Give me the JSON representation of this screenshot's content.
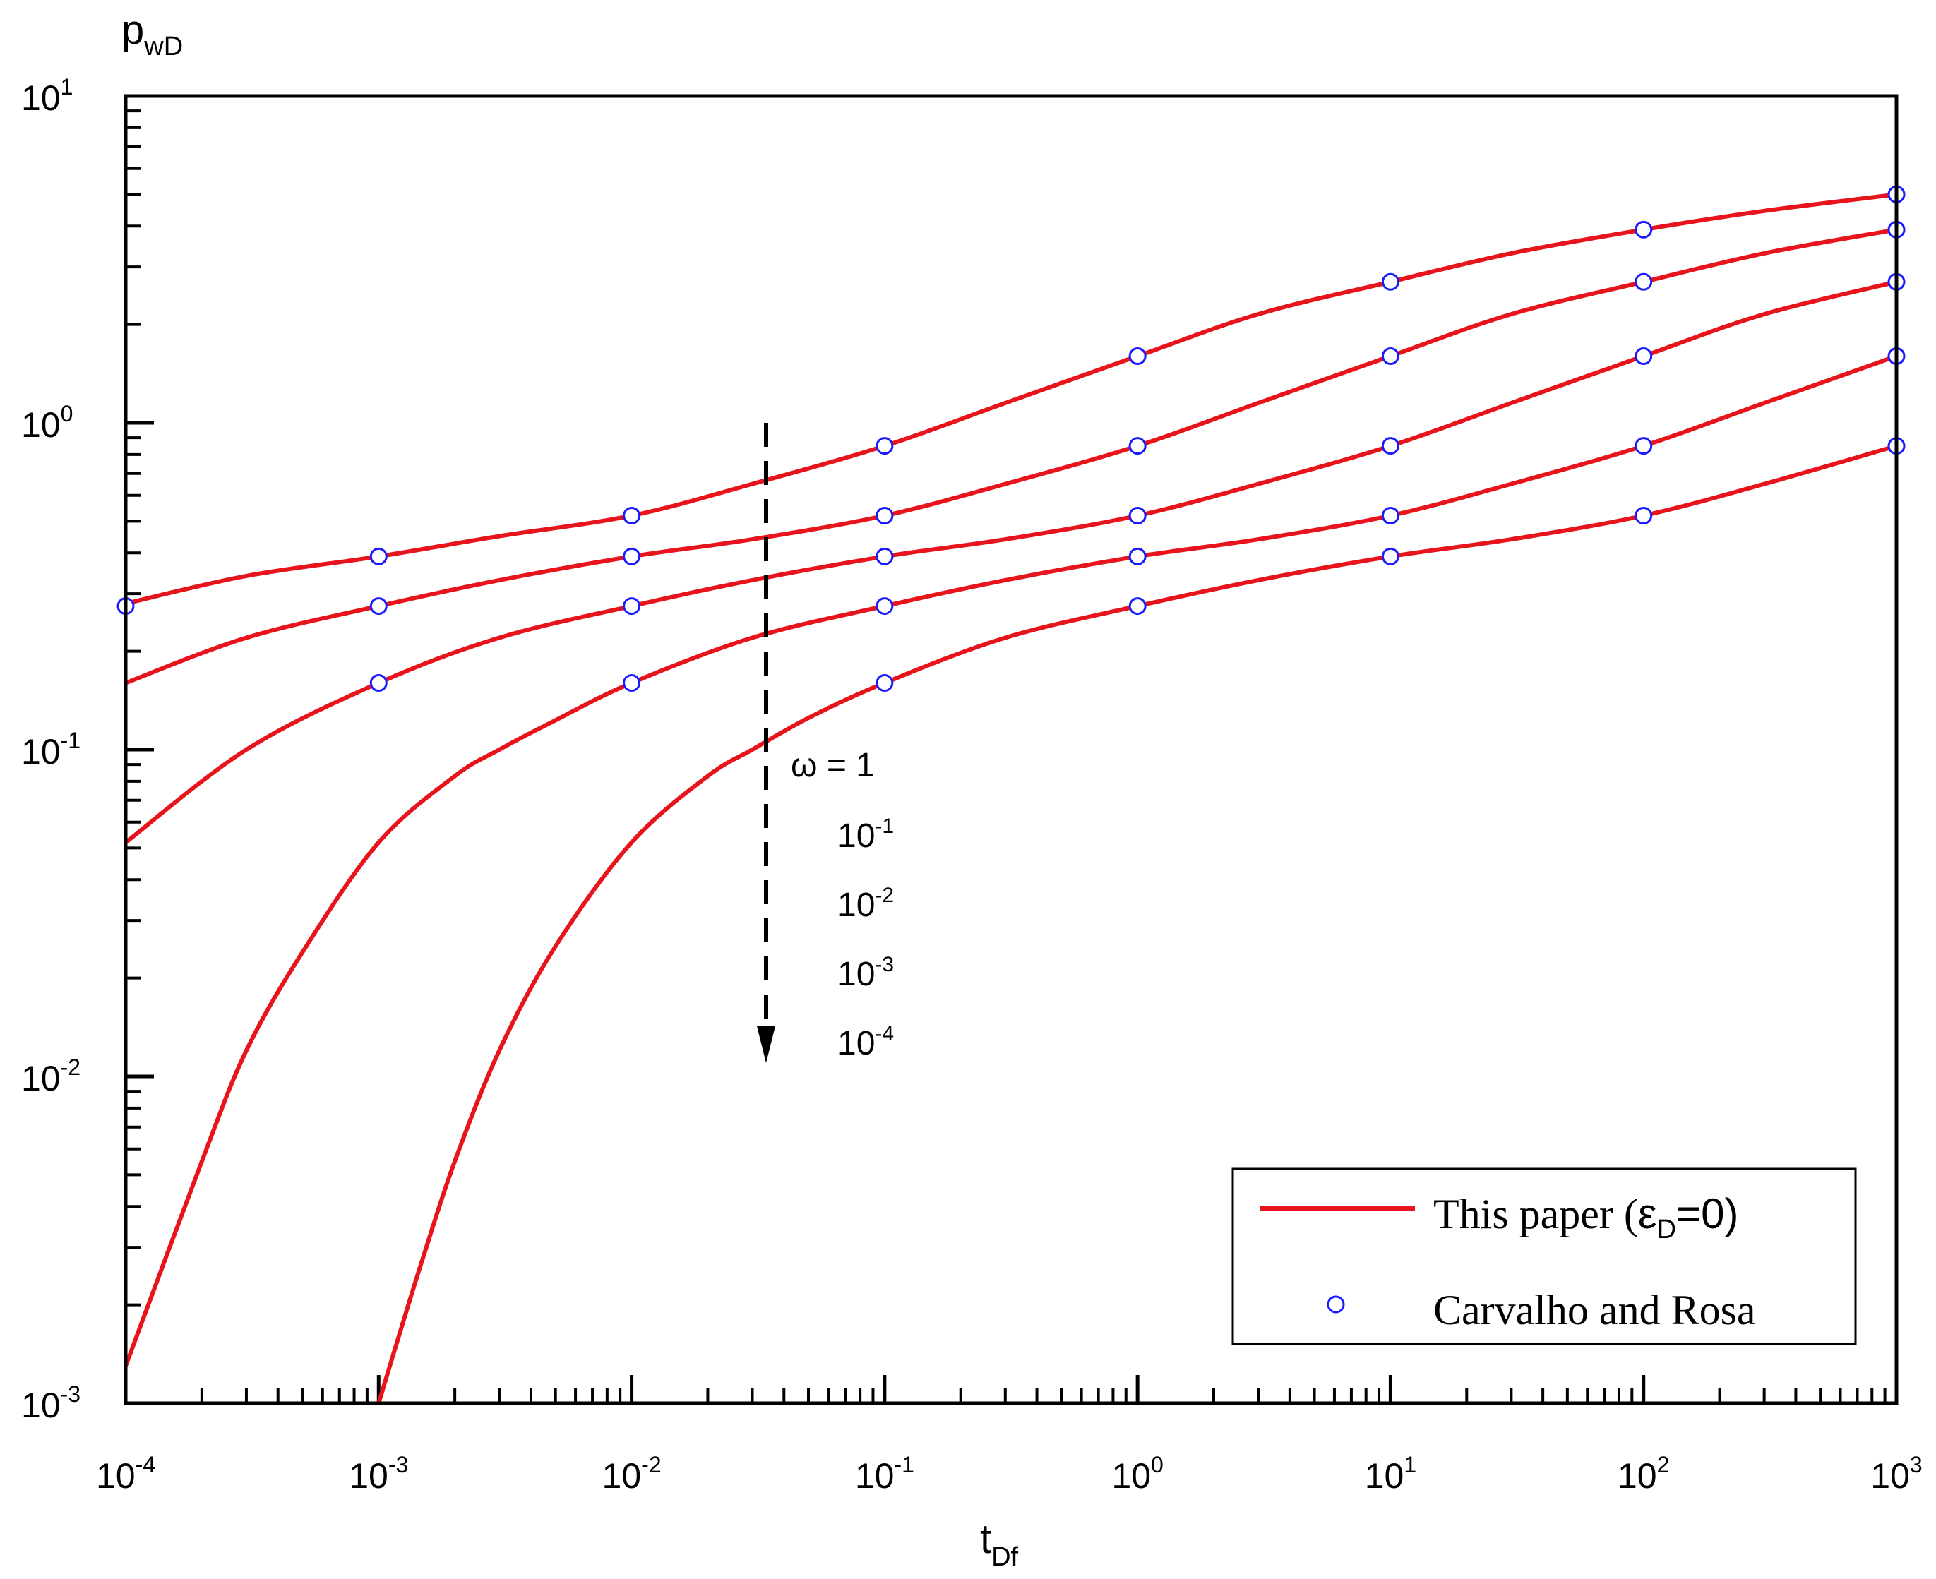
{
  "chart_data": {
    "type": "line",
    "scale": "log-log",
    "xlabel": {
      "main": "t",
      "sub": "Df"
    },
    "ylabel": {
      "main": "p",
      "sub": "wD"
    },
    "xlim": [
      0.0001,
      1000
    ],
    "ylim": [
      0.001,
      10
    ],
    "x_ticks": [
      {
        "base": "10",
        "exp": "-4"
      },
      {
        "base": "10",
        "exp": "-3"
      },
      {
        "base": "10",
        "exp": "-2"
      },
      {
        "base": "10",
        "exp": "-1"
      },
      {
        "base": "10",
        "exp": "0"
      },
      {
        "base": "10",
        "exp": "1"
      },
      {
        "base": "10",
        "exp": "2"
      },
      {
        "base": "10",
        "exp": "3"
      }
    ],
    "y_ticks": [
      {
        "base": "10",
        "exp": "-3"
      },
      {
        "base": "10",
        "exp": "-2"
      },
      {
        "base": "10",
        "exp": "-1"
      },
      {
        "base": "10",
        "exp": "0"
      },
      {
        "base": "10",
        "exp": "1"
      }
    ],
    "grid": false,
    "legend": {
      "position": "bottom-right",
      "entries": [
        {
          "pre": "This paper (",
          "greek": "ε",
          "sub": "D",
          "post": "=0)",
          "style": "line",
          "color": "#e8141c"
        },
        {
          "label": "Carvalho and Rosa",
          "style": "marker",
          "color": "#1a1aff"
        }
      ]
    },
    "annotation": {
      "arrow_x": 0.034,
      "arrow_y_range": [
        1.0,
        0.011
      ],
      "labels": [
        {
          "text": "ω = 1"
        },
        {
          "base": "10",
          "exp": "-1"
        },
        {
          "base": "10",
          "exp": "-2"
        },
        {
          "base": "10",
          "exp": "-3"
        },
        {
          "base": "10",
          "exp": "-4"
        }
      ]
    },
    "series": [
      {
        "omega": "1",
        "line_points": [
          [
            0.0001,
            0.28
          ],
          [
            0.0003,
            0.34
          ],
          [
            0.001,
            0.39
          ],
          [
            0.003,
            0.45
          ],
          [
            0.01,
            0.52
          ],
          [
            0.03,
            0.65
          ],
          [
            0.1,
            0.85
          ],
          [
            0.3,
            1.15
          ],
          [
            1,
            1.6
          ],
          [
            3,
            2.15
          ],
          [
            10,
            2.7
          ],
          [
            30,
            3.3
          ],
          [
            100,
            3.9
          ],
          [
            300,
            4.45
          ],
          [
            1000,
            5.0
          ]
        ],
        "markers": [
          [
            0.0001,
            0.275
          ],
          [
            0.001,
            0.39
          ],
          [
            0.01,
            0.52
          ],
          [
            0.1,
            0.85
          ],
          [
            1,
            1.6
          ],
          [
            10,
            2.7
          ],
          [
            100,
            3.9
          ],
          [
            1000,
            5.0
          ]
        ]
      },
      {
        "omega": "10^-1",
        "line_points": [
          [
            0.0001,
            0.16
          ],
          [
            0.0003,
            0.22
          ],
          [
            0.001,
            0.275
          ],
          [
            0.003,
            0.33
          ],
          [
            0.01,
            0.39
          ],
          [
            0.03,
            0.44
          ],
          [
            0.1,
            0.52
          ],
          [
            0.3,
            0.65
          ],
          [
            1,
            0.85
          ],
          [
            3,
            1.15
          ],
          [
            10,
            1.6
          ],
          [
            30,
            2.15
          ],
          [
            100,
            2.7
          ],
          [
            300,
            3.3
          ],
          [
            1000,
            3.9
          ]
        ],
        "markers": [
          [
            0.001,
            0.275
          ],
          [
            0.01,
            0.39
          ],
          [
            0.1,
            0.52
          ],
          [
            1,
            0.85
          ],
          [
            10,
            1.6
          ],
          [
            100,
            2.7
          ],
          [
            1000,
            3.9
          ]
        ]
      },
      {
        "omega": "10^-2",
        "line_points": [
          [
            0.0001,
            0.052
          ],
          [
            0.0003,
            0.1
          ],
          [
            0.001,
            0.16
          ],
          [
            0.003,
            0.22
          ],
          [
            0.01,
            0.275
          ],
          [
            0.03,
            0.33
          ],
          [
            0.1,
            0.39
          ],
          [
            0.3,
            0.44
          ],
          [
            1,
            0.52
          ],
          [
            3,
            0.65
          ],
          [
            10,
            0.85
          ],
          [
            30,
            1.15
          ],
          [
            100,
            1.6
          ],
          [
            300,
            2.15
          ],
          [
            1000,
            2.7
          ]
        ],
        "markers": [
          [
            0.001,
            0.16
          ],
          [
            0.01,
            0.275
          ],
          [
            0.1,
            0.39
          ],
          [
            1,
            0.52
          ],
          [
            10,
            0.85
          ],
          [
            100,
            1.6
          ],
          [
            1000,
            2.7
          ]
        ]
      },
      {
        "omega": "10^-3",
        "line_points": [
          [
            0.0001,
            0.0013
          ],
          [
            0.0002,
            0.0055
          ],
          [
            0.0003,
            0.012
          ],
          [
            0.0005,
            0.024
          ],
          [
            0.001,
            0.052
          ],
          [
            0.002,
            0.083
          ],
          [
            0.003,
            0.1
          ],
          [
            0.005,
            0.123
          ],
          [
            0.01,
            0.16
          ],
          [
            0.03,
            0.22
          ],
          [
            0.1,
            0.275
          ],
          [
            0.3,
            0.33
          ],
          [
            1,
            0.39
          ],
          [
            3,
            0.44
          ],
          [
            10,
            0.52
          ],
          [
            30,
            0.65
          ],
          [
            100,
            0.85
          ],
          [
            300,
            1.15
          ],
          [
            1000,
            1.6
          ]
        ],
        "markers": [
          [
            0.01,
            0.16
          ],
          [
            0.1,
            0.275
          ],
          [
            1,
            0.39
          ],
          [
            10,
            0.52
          ],
          [
            100,
            0.85
          ],
          [
            1000,
            1.6
          ]
        ]
      },
      {
        "omega": "10^-4",
        "line_points": [
          [
            0.001,
            0.001
          ],
          [
            0.0012,
            0.0016
          ],
          [
            0.0015,
            0.0028
          ],
          [
            0.002,
            0.0055
          ],
          [
            0.003,
            0.012
          ],
          [
            0.005,
            0.025
          ],
          [
            0.01,
            0.052
          ],
          [
            0.02,
            0.083
          ],
          [
            0.03,
            0.1
          ],
          [
            0.05,
            0.125
          ],
          [
            0.1,
            0.16
          ],
          [
            0.3,
            0.22
          ],
          [
            1,
            0.275
          ],
          [
            3,
            0.33
          ],
          [
            10,
            0.39
          ],
          [
            30,
            0.44
          ],
          [
            100,
            0.52
          ],
          [
            300,
            0.65
          ],
          [
            1000,
            0.85
          ]
        ],
        "markers": [
          [
            0.1,
            0.16
          ],
          [
            1,
            0.275
          ],
          [
            10,
            0.39
          ],
          [
            100,
            0.52
          ],
          [
            1000,
            0.85
          ]
        ]
      }
    ]
  }
}
